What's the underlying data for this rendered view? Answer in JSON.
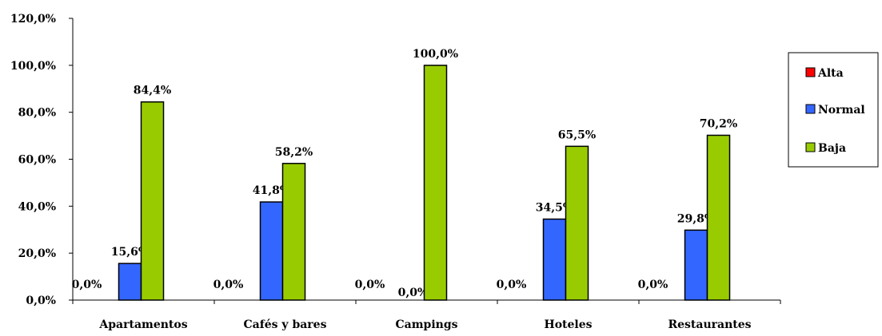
{
  "chart_data": {
    "type": "bar",
    "title": "",
    "xlabel": "",
    "ylabel": "",
    "categories": [
      "Apartamentos",
      "Cafés y bares",
      "Campings",
      "Hoteles",
      "Restaurantes"
    ],
    "series": [
      {
        "name": "Alta",
        "color": "#ff0000",
        "values": [
          0,
          0,
          0,
          0,
          0
        ]
      },
      {
        "name": "Normal",
        "color": "#3366ff",
        "values": [
          15.6,
          41.8,
          0,
          34.5,
          29.8
        ]
      },
      {
        "name": "Baja",
        "color": "#99cc00",
        "values": [
          84.4,
          58.2,
          100,
          65.5,
          70.2
        ]
      }
    ],
    "data_labels": [
      [
        "0,0%",
        "0,0%",
        "0,0%",
        "0,0%",
        "0,0%"
      ],
      [
        "15,6%",
        "41,8%",
        "0,0%",
        "34,5%",
        "29,8%"
      ],
      [
        "84,4%",
        "58,2%",
        "100,0%",
        "65,5%",
        "70,2%"
      ]
    ],
    "ylim": [
      0,
      120
    ],
    "yticks": [
      0,
      20,
      40,
      60,
      80,
      100,
      120
    ],
    "ytick_labels": [
      "0,0%",
      "20,0%",
      "40,0%",
      "60,0%",
      "80,0%",
      "100,0%",
      "120,0%"
    ],
    "grid": false,
    "legend_position": "right"
  }
}
